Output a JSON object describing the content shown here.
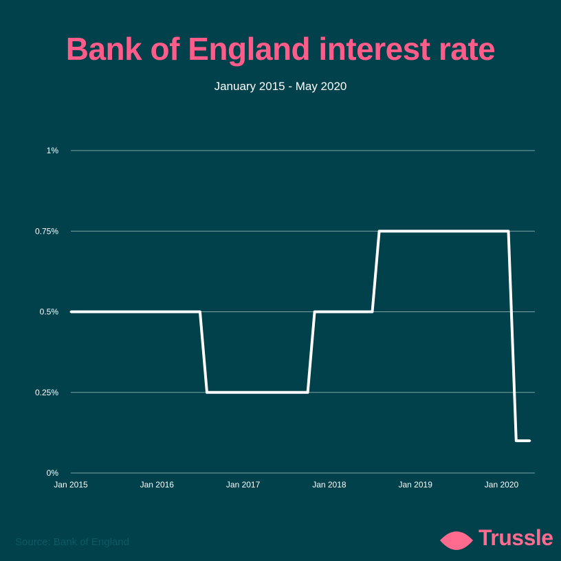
{
  "header": {
    "title": "Bank of England interest rate",
    "subtitle": "January 2015 - May 2020"
  },
  "footer": {
    "source": "Source: Bank of England",
    "brand": "Trussle"
  },
  "colors": {
    "background": "#00414b",
    "title": "#ff5c8a",
    "line": "#ffffff",
    "grid": "#7fa3a8",
    "brand": "#ff6b8f"
  },
  "chart_data": {
    "type": "line",
    "title": "Bank of England interest rate",
    "subtitle": "January 2015 - May 2020",
    "xlabel": "",
    "ylabel": "",
    "x_ticks": [
      {
        "label": "Jan 2015",
        "value": 2015.0
      },
      {
        "label": "Jan 2016",
        "value": 2016.0
      },
      {
        "label": "Jan 2017",
        "value": 2017.0
      },
      {
        "label": "Jan 2018",
        "value": 2018.0
      },
      {
        "label": "Jan 2019",
        "value": 2019.0
      },
      {
        "label": "Jan 2020",
        "value": 2020.0
      }
    ],
    "y_ticks": [
      {
        "label": "0%",
        "value": 0
      },
      {
        "label": "0.25%",
        "value": 0.25
      },
      {
        "label": "0.5%",
        "value": 0.5
      },
      {
        "label": "0.75%",
        "value": 0.75
      },
      {
        "label": "1%",
        "value": 1
      }
    ],
    "xlim": [
      2015.0,
      2020.42
    ],
    "ylim": [
      0,
      1
    ],
    "grid": true,
    "series": [
      {
        "points": [
          {
            "date": "Jan 2015",
            "x": 2015.0,
            "y": 0.5
          },
          {
            "date": "Jul 2016",
            "x": 2016.5,
            "y": 0.5
          },
          {
            "date": "Aug 2016",
            "x": 2016.58,
            "y": 0.25
          },
          {
            "date": "Oct 2017",
            "x": 2017.75,
            "y": 0.25
          },
          {
            "date": "Nov 2017",
            "x": 2017.83,
            "y": 0.5
          },
          {
            "date": "Jul 2018",
            "x": 2018.5,
            "y": 0.5
          },
          {
            "date": "Aug 2018",
            "x": 2018.58,
            "y": 0.75
          },
          {
            "date": "Feb 2020",
            "x": 2020.08,
            "y": 0.75
          },
          {
            "date": "Mar 2020",
            "x": 2020.17,
            "y": 0.1
          },
          {
            "date": "May 2020",
            "x": 2020.33,
            "y": 0.1
          }
        ]
      }
    ]
  }
}
